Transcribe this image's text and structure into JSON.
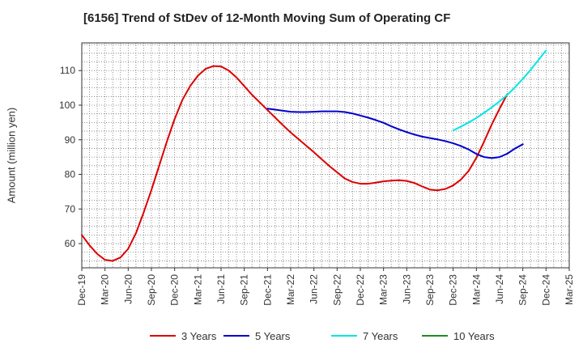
{
  "chart_data": {
    "type": "line",
    "title": "[6156]  Trend of StDev of 12-Month Moving Sum of Operating CF",
    "xlabel": "",
    "ylabel": "Amount (million yen)",
    "ylim": [
      53,
      118
    ],
    "yticks": [
      60,
      70,
      80,
      90,
      100,
      110
    ],
    "grid": true,
    "legend_position": "bottom",
    "x_tick_labels": [
      "Dec-19",
      "Mar-20",
      "Jun-20",
      "Sep-20",
      "Dec-20",
      "Mar-21",
      "Jun-21",
      "Sep-21",
      "Dec-21",
      "Mar-22",
      "Jun-22",
      "Sep-22",
      "Dec-22",
      "Mar-23",
      "Jun-23",
      "Sep-23",
      "Dec-23",
      "Mar-24",
      "Jun-24",
      "Sep-24",
      "Dec-24",
      "Mar-25"
    ],
    "months": [
      "Dec-19",
      "Jan-20",
      "Feb-20",
      "Mar-20",
      "Apr-20",
      "May-20",
      "Jun-20",
      "Jul-20",
      "Aug-20",
      "Sep-20",
      "Oct-20",
      "Nov-20",
      "Dec-20",
      "Jan-21",
      "Feb-21",
      "Mar-21",
      "Apr-21",
      "May-21",
      "Jun-21",
      "Jul-21",
      "Aug-21",
      "Sep-21",
      "Oct-21",
      "Nov-21",
      "Dec-21",
      "Jan-22",
      "Feb-22",
      "Mar-22",
      "Apr-22",
      "May-22",
      "Jun-22",
      "Jul-22",
      "Aug-22",
      "Sep-22",
      "Oct-22",
      "Nov-22",
      "Dec-22",
      "Jan-23",
      "Feb-23",
      "Mar-23",
      "Apr-23",
      "May-23",
      "Jun-23",
      "Jul-23",
      "Aug-23",
      "Sep-23",
      "Oct-23",
      "Nov-23",
      "Dec-23",
      "Jan-24",
      "Feb-24",
      "Mar-24",
      "Apr-24",
      "May-24",
      "Jun-24",
      "Jul-24",
      "Aug-24",
      "Sep-24",
      "Oct-24",
      "Nov-24",
      "Dec-24",
      "Jan-25",
      "Feb-25",
      "Mar-25"
    ],
    "series": [
      {
        "name": "3 Years",
        "color": "#dd0000",
        "start_index": 0,
        "values": [
          62.5,
          59.5,
          57.0,
          55.3,
          55.0,
          56.0,
          58.5,
          63.0,
          69.0,
          75.5,
          82.5,
          89.5,
          96.0,
          101.5,
          105.5,
          108.5,
          110.5,
          111.3,
          111.2,
          110.0,
          108.0,
          105.5,
          103.0,
          100.8,
          98.6,
          96.4,
          94.2,
          92.1,
          90.2,
          88.3,
          86.4,
          84.4,
          82.4,
          80.6,
          78.8,
          77.8,
          77.3,
          77.3,
          77.6,
          78.0,
          78.2,
          78.3,
          78.1,
          77.5,
          76.5,
          75.6,
          75.4,
          75.8,
          76.8,
          78.5,
          81.0,
          84.8,
          89.5,
          94.5,
          99.0,
          103.2
        ]
      },
      {
        "name": "5 Years",
        "color": "#0000cc",
        "start_index": 24,
        "values": [
          99.0,
          98.7,
          98.4,
          98.1,
          98.0,
          98.0,
          98.1,
          98.2,
          98.2,
          98.2,
          98.0,
          97.6,
          97.0,
          96.4,
          95.7,
          94.9,
          93.9,
          93.0,
          92.2,
          91.5,
          90.9,
          90.5,
          90.1,
          89.6,
          89.0,
          88.2,
          87.2,
          85.9,
          85.0,
          84.7,
          85.0,
          86.0,
          87.5,
          88.7
        ]
      },
      {
        "name": "7 Years",
        "color": "#00e5e5",
        "start_index": 48,
        "values": [
          92.7,
          93.8,
          95.0,
          96.3,
          97.8,
          99.4,
          101.1,
          103.0,
          105.2,
          107.6,
          110.2,
          113.0,
          115.8
        ]
      },
      {
        "name": "10 Years",
        "color": "#228b22",
        "start_index": 0,
        "values": []
      }
    ]
  }
}
